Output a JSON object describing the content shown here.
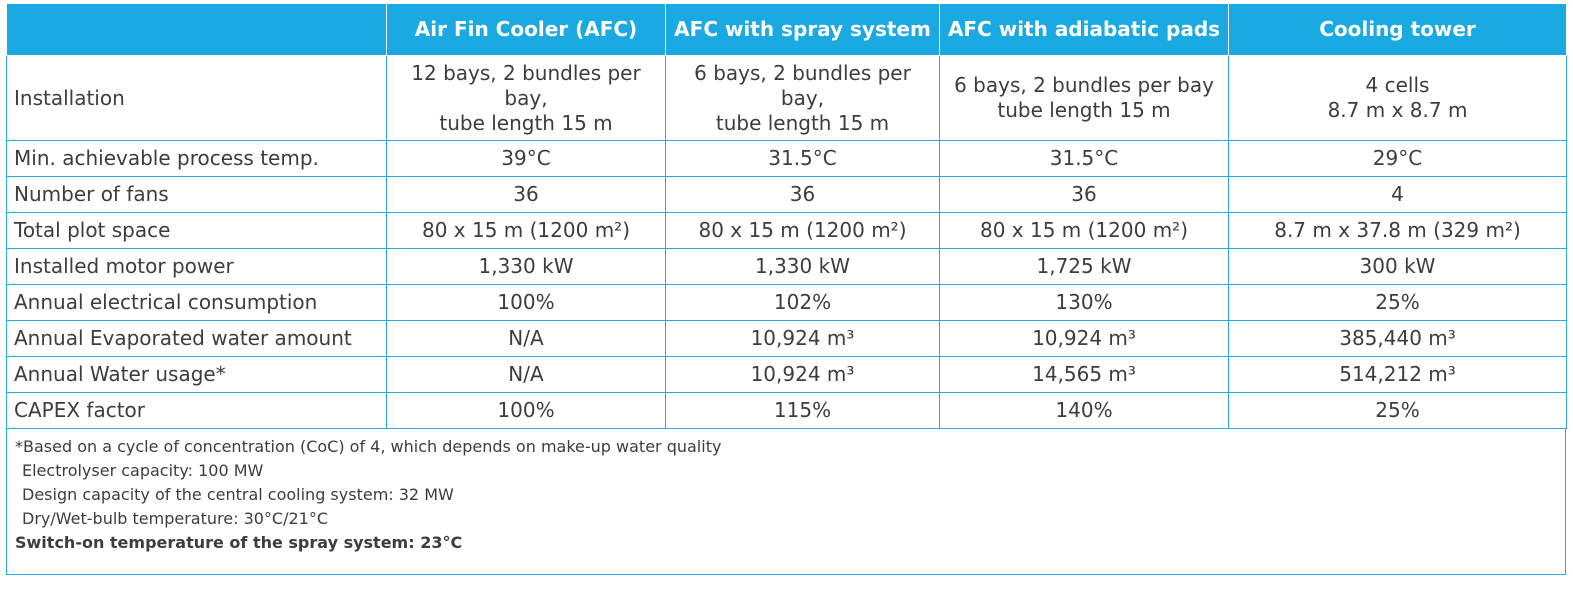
{
  "table": {
    "header": [
      "Air Fin Cooler (AFC)",
      "AFC with spray system",
      "AFC with adiabatic pads",
      "Cooling tower"
    ],
    "rows": [
      [
        "Installation",
        "12 bays, 2 bundles per bay,\ntube length 15 m",
        "6 bays, 2 bundles per bay,\ntube length 15 m",
        "6 bays, 2 bundles per bay\ntube length 15 m",
        "4 cells\n8.7 m x 8.7 m"
      ],
      [
        "Min. achievable process temp.",
        "39°C",
        "31.5°C",
        "31.5°C",
        "29°C"
      ],
      [
        "Number of fans",
        "36",
        "36",
        "36",
        "4"
      ],
      [
        "Total plot space",
        "80 x 15 m (1200 m²)",
        "80 x 15 m (1200 m²)",
        "80 x 15 m (1200 m²)",
        "8.7 m x 37.8 m (329 m²)"
      ],
      [
        "Installed motor power",
        "1,330 kW",
        "1,330 kW",
        "1,725 kW",
        "300 kW"
      ],
      [
        "Annual electrical consumption",
        "100%",
        "102%",
        "130%",
        "25%"
      ],
      [
        "Annual Evaporated water amount",
        "N/A",
        "10,924 m³",
        "10,924 m³",
        "385,440 m³"
      ],
      [
        "Annual Water usage*",
        "N/A",
        "10,924 m³",
        "14,565 m³",
        "514,212 m³"
      ],
      [
        "CAPEX factor",
        "100%",
        "115%",
        "140%",
        "25%"
      ]
    ],
    "notes": [
      "*Based on a cycle of concentration (CoC) of 4, which depends on make-up water quality",
      "Electrolyser capacity: 100 MW",
      "Design capacity of the central cooling system: 32 MW",
      "Dry/Wet-bulb temperature: 30°C/21°C",
      "Switch-on temperature of the spray system: 23°C"
    ]
  }
}
